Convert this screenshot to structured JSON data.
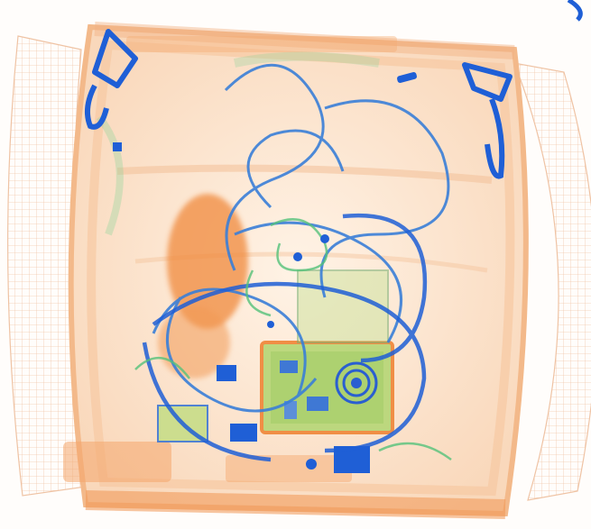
{
  "image": {
    "kind": "xray-baggage-scan",
    "colors": {
      "background": "#fffdfb",
      "bag_body": "#fbe3cc",
      "bag_edge": "#f3b98a",
      "organic_dense": "#f08a3e",
      "metal_blue": "#1f5fd6",
      "cable_blue": "#3a7fd8",
      "cable_green": "#55c27a",
      "board_green": "#8fc86a"
    }
  }
}
